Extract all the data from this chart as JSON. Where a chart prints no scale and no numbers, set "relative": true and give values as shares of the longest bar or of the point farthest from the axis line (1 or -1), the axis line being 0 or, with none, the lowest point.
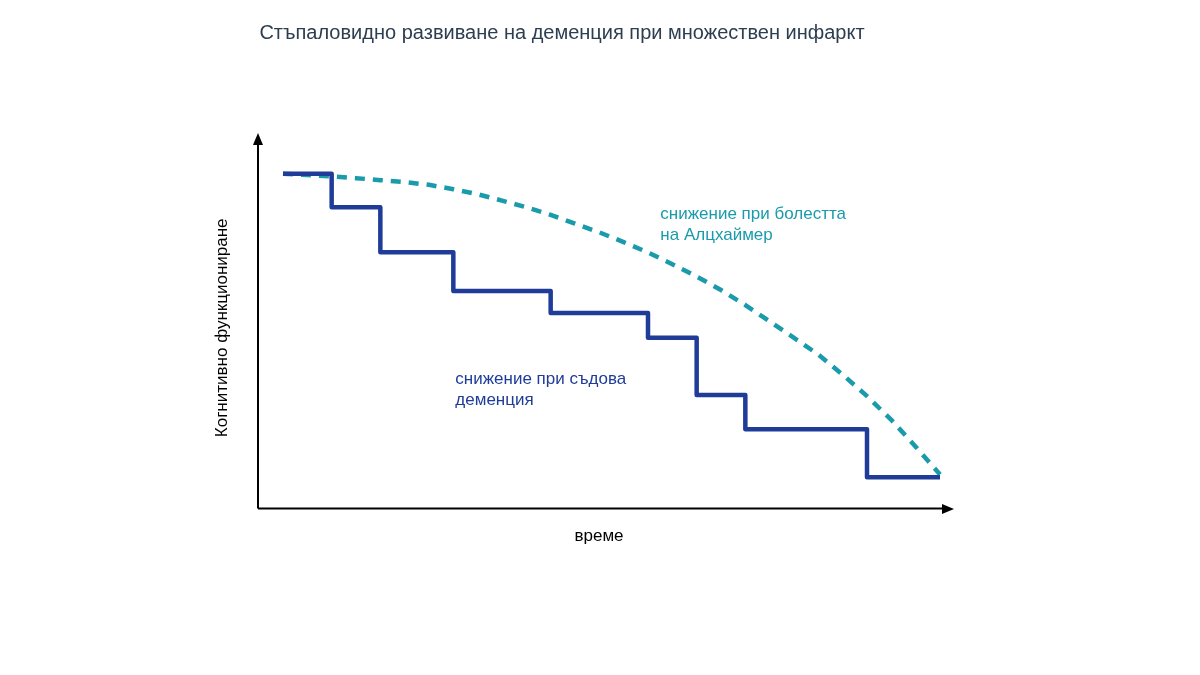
{
  "chart_data": {
    "type": "line",
    "title": "Стъпаловидно развиване на деменция при множествен инфаркт",
    "xlabel": "време",
    "ylabel": "Когнитивно функциониране",
    "relative": true,
    "legend": false,
    "marker": "none",
    "categories": [
      null,
      null,
      null,
      null,
      null,
      null,
      null,
      null,
      null,
      null,
      null,
      null,
      null,
      null,
      null,
      null,
      null,
      null,
      null,
      null,
      null,
      null,
      null,
      null,
      null,
      null,
      null,
      null
    ],
    "series": [
      {
        "name": "снижение при съдова деменция",
        "type": "step",
        "color": "#1f3c98",
        "line_style": "solid",
        "values": [
          1,
          1,
          0.9,
          0.9,
          0.766,
          0.766,
          0.766,
          0.65,
          0.65,
          0.65,
          0.65,
          0.584,
          0.584,
          0.584,
          0.584,
          0.51,
          0.51,
          0.339,
          0.339,
          0.237,
          0.237,
          0.237,
          0.237,
          0.237,
          0.094,
          0.094,
          0.094,
          0.094
        ]
      },
      {
        "name": "снижение при болестта на Алцхаймер",
        "type": "line",
        "color": "#1a9bab",
        "line_style": "dashed",
        "values": [
          1,
          0.996,
          0.992,
          0.987,
          0.981,
          0.975,
          0.967,
          0.954,
          0.939,
          0.92,
          0.9,
          0.877,
          0.851,
          0.825,
          0.796,
          0.765,
          0.73,
          0.693,
          0.653,
          0.608,
          0.559,
          0.51,
          0.46,
          0.4,
          0.336,
          0.265,
          0.185,
          0.102
        ]
      }
    ]
  }
}
